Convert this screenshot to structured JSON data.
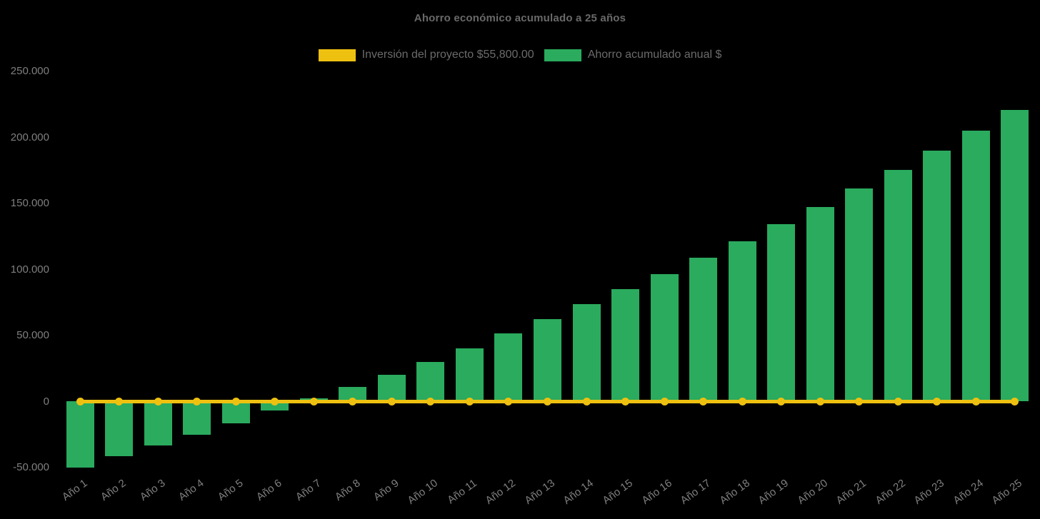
{
  "title": "Ahorro económico acumulado a 25 años",
  "background": "#000000",
  "legend": [
    {
      "label": "Inversión del proyecto $55,800.00",
      "color": "#eec111"
    },
    {
      "label": "Ahorro acumulado anual $",
      "color": "#2aab5e"
    }
  ],
  "chart_data": {
    "type": "bar",
    "title": "Ahorro económico acumulado a 25 años",
    "categories": [
      "Año 1",
      "Año 2",
      "Año 3",
      "Año 4",
      "Año 5",
      "Año 6",
      "Año 7",
      "Año 8",
      "Año 9",
      "Año 10",
      "Año 11",
      "Año 12",
      "Año 13",
      "Año 14",
      "Año 15",
      "Año 16",
      "Año 17",
      "Año 18",
      "Año 19",
      "Año 20",
      "Año 21",
      "Año 22",
      "Año 23",
      "Año 24",
      "Año 25"
    ],
    "series": [
      {
        "name": "Ahorro acumulado anual $",
        "type": "bar",
        "color": "#2aab5e",
        "values": [
          -50000,
          -41500,
          -33500,
          -25500,
          -17000,
          -7000,
          2000,
          11000,
          20000,
          30000,
          40000,
          51500,
          62000,
          73500,
          85000,
          96000,
          108500,
          121000,
          134000,
          147000,
          161000,
          175000,
          190000,
          205000,
          220500
        ]
      },
      {
        "name": "Inversión del proyecto $55,800.00",
        "type": "line",
        "color": "#eec111",
        "marker": "circle",
        "values": [
          0,
          0,
          0,
          0,
          0,
          0,
          0,
          0,
          0,
          0,
          0,
          0,
          0,
          0,
          0,
          0,
          0,
          0,
          0,
          0,
          0,
          0,
          0,
          0,
          0
        ]
      }
    ],
    "xlabel": "",
    "ylabel": "",
    "ylim": [
      -50000,
      250000
    ],
    "yticks": [
      {
        "value": 250000,
        "label": "250.000"
      },
      {
        "value": 200000,
        "label": "200.000"
      },
      {
        "value": 150000,
        "label": "150.000"
      },
      {
        "value": 100000,
        "label": "100.000"
      },
      {
        "value": 50000,
        "label": "50.000"
      },
      {
        "value": 0,
        "label": "0"
      },
      {
        "value": -50000,
        "label": "-50.000"
      }
    ],
    "grid": false,
    "legend_position": "top-center"
  }
}
